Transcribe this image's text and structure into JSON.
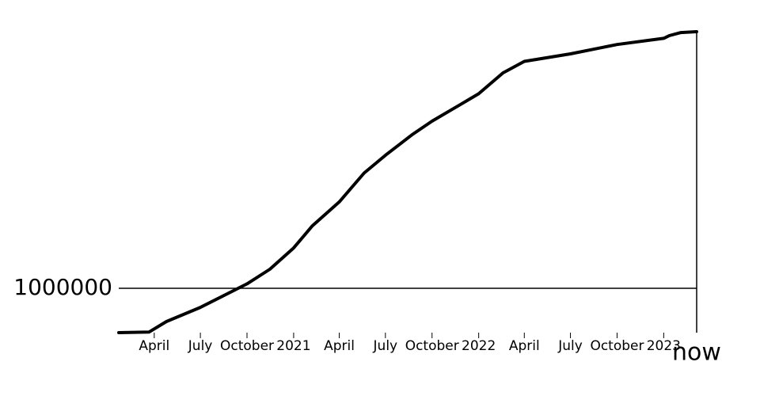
{
  "chart_data": {
    "type": "line",
    "x": [
      "2020-01-22",
      "2020-03-22",
      "2020-04-25",
      "2020-07-01",
      "2020-10-01",
      "2020-11-15",
      "2021-01-01",
      "2021-02-07",
      "2021-04-01",
      "2021-05-20",
      "2021-07-01",
      "2021-08-22",
      "2021-10-01",
      "2021-11-25",
      "2022-01-01",
      "2022-02-18",
      "2022-04-01",
      "2022-07-01",
      "2022-10-01",
      "2023-01-01",
      "2023-01-12",
      "2023-02-04",
      "2023-03-07"
    ],
    "series": [
      {
        "color": "#000000",
        "values": [
          17,
          15000,
          250000,
          570000,
          1100000,
          1430000,
          1910000,
          2410000,
          2950000,
          3600000,
          4000000,
          4460000,
          4770000,
          5140000,
          5390000,
          5860000,
          6120000,
          6290000,
          6500000,
          6640000,
          6700000,
          6770000,
          6790000
        ]
      }
    ],
    "xlim": [
      "2020-01-22",
      "2023-03-07"
    ],
    "xticks": [
      {
        "value": "2020-04-01",
        "label": "April"
      },
      {
        "value": "2020-07-01",
        "label": "July"
      },
      {
        "value": "2020-10-01",
        "label": "October"
      },
      {
        "value": "2021-01-01",
        "label": "2021"
      },
      {
        "value": "2021-04-01",
        "label": "April"
      },
      {
        "value": "2021-07-01",
        "label": "July"
      },
      {
        "value": "2021-10-01",
        "label": "October"
      },
      {
        "value": "2022-01-01",
        "label": "2022"
      },
      {
        "value": "2022-04-01",
        "label": "April"
      },
      {
        "value": "2022-07-01",
        "label": "July"
      },
      {
        "value": "2022-10-01",
        "label": "October"
      },
      {
        "value": "2023-01-01",
        "label": "2023"
      }
    ],
    "ylim": [
      0,
      6790000
    ],
    "yticks": [
      1000000
    ],
    "grid": true,
    "annotation": "now"
  }
}
